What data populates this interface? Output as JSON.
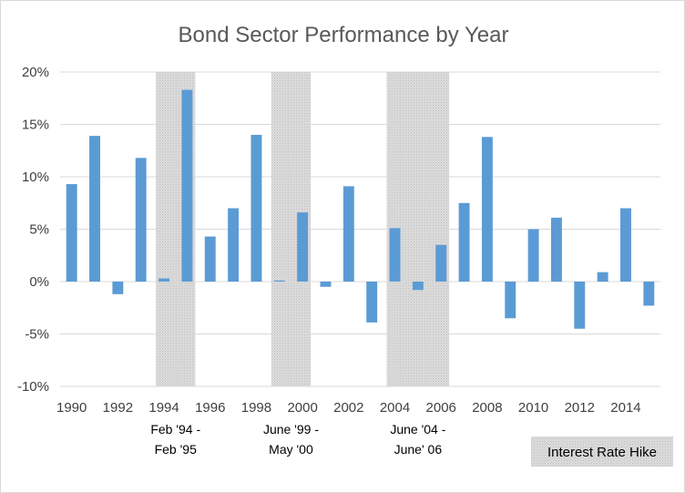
{
  "chart_data": {
    "type": "bar",
    "title": "Bond Sector Performance by Year",
    "xlabel": "",
    "ylabel": "",
    "ylim": [
      -10,
      20
    ],
    "yticks": [
      -10,
      -5,
      0,
      5,
      10,
      15,
      20
    ],
    "ytick_labels": [
      "-10%",
      "-5%",
      "0%",
      "5%",
      "10%",
      "15%",
      "20%"
    ],
    "xtick_labels": [
      "1990",
      "1992",
      "1994",
      "1996",
      "1998",
      "2000",
      "2002",
      "2004",
      "2006",
      "2008",
      "2010",
      "2012",
      "2014"
    ],
    "grid": true,
    "bar_color": "#5b9bd5",
    "shade_color": "#d9d9d9",
    "categories": [
      "1990",
      "1991",
      "1992",
      "1993",
      "1994",
      "1995",
      "1996",
      "1997",
      "1998",
      "1999",
      "2000",
      "2001",
      "2002",
      "2003",
      "2004",
      "2005",
      "2006",
      "2007",
      "2008",
      "2009",
      "2010",
      "2011",
      "2012",
      "2013",
      "2014",
      "2015"
    ],
    "values": [
      9.3,
      13.9,
      -1.2,
      11.8,
      0.3,
      18.3,
      4.3,
      7.0,
      14.0,
      0.1,
      6.6,
      -0.5,
      9.1,
      -3.9,
      5.1,
      -0.8,
      3.5,
      7.5,
      13.8,
      -3.5,
      5.0,
      6.1,
      -4.5,
      0.9,
      7.0,
      -2.3
    ],
    "annotations": [
      {
        "from": "1994",
        "to": "1995",
        "lines": [
          "Feb '94 -",
          "Feb '95"
        ]
      },
      {
        "from": "1999",
        "to": "2000",
        "lines": [
          "June '99 -",
          "May '00"
        ]
      },
      {
        "from": "2004",
        "to": "2006",
        "lines": [
          "June '04 -",
          "June' 06"
        ]
      }
    ],
    "legend": {
      "label": "Interest Rate Hike",
      "position": "bottom-right"
    }
  }
}
